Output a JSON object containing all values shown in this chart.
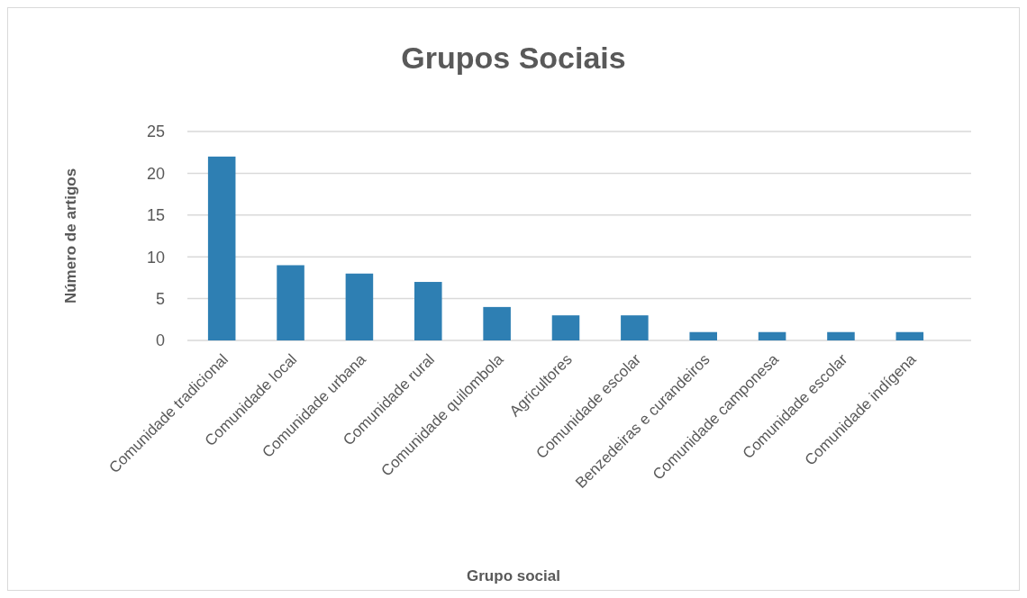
{
  "chart_data": {
    "type": "bar",
    "title": "Grupos Sociais",
    "xlabel": "Grupo social",
    "ylabel": "Número de artigos",
    "categories": [
      "Comunidade tradicional",
      "Comunidade local",
      "Comunidade urbana",
      "Comunidade rural",
      "Comunidade quilombola",
      "Agricultores",
      "Comunidade escolar",
      "Benzedeiras e curandeiros",
      "Comunidade camponesa",
      "Comunidade escolar",
      "Comunidade indígena"
    ],
    "values": [
      22,
      9,
      8,
      7,
      4,
      3,
      3,
      1,
      1,
      1,
      1
    ],
    "color": "#2e7fb3",
    "ylim": [
      0,
      25
    ],
    "yticks": [
      0,
      5,
      10,
      15,
      20,
      25
    ],
    "grid": "y"
  }
}
